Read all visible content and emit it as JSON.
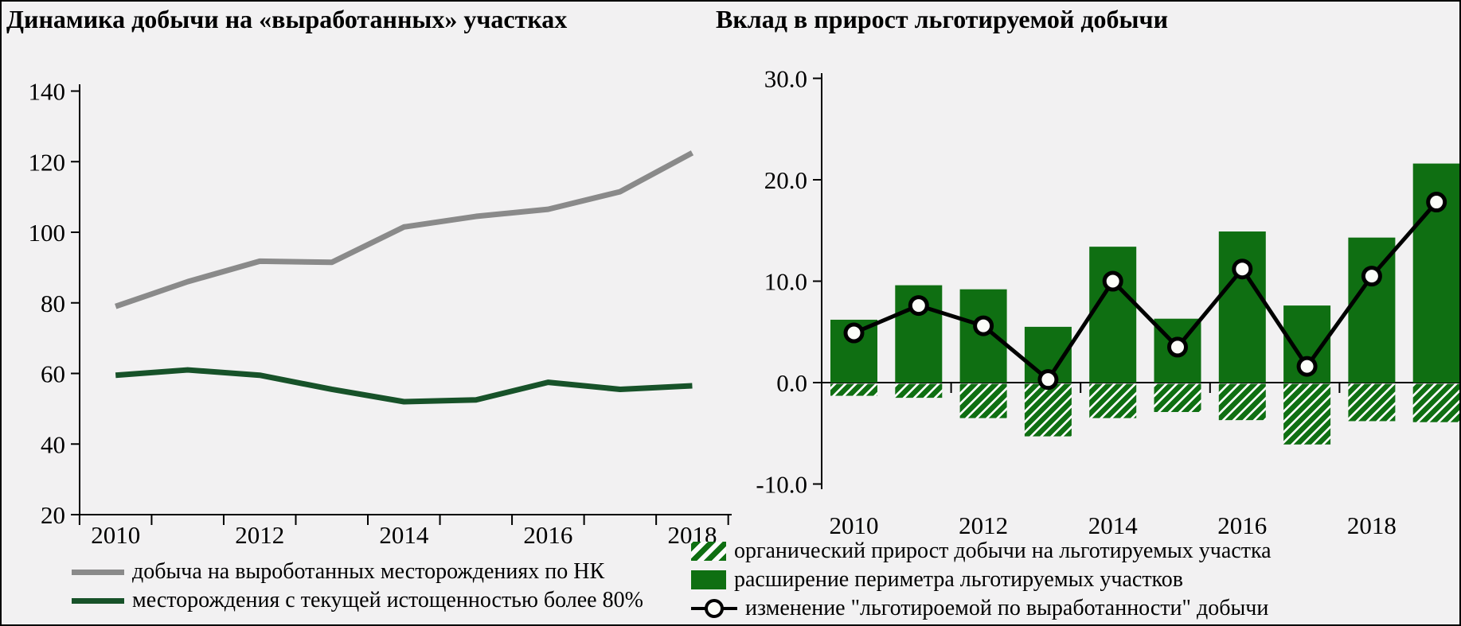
{
  "page": {
    "background": "#f2f1f2",
    "frame_color": "#000000"
  },
  "colors": {
    "gray_line": "#8a8a8a",
    "dark_green_line": "#175229",
    "bar_green": "#0f6f12",
    "hatch_bg": "#fdfdfd",
    "marker_fill": "#fbfdf8",
    "axis": "#000000",
    "text": "#000000"
  },
  "chart_data": [
    {
      "type": "line",
      "title": "Динамика добычи на «выработанных» участках",
      "x": [
        2010,
        2011,
        2012,
        2013,
        2014,
        2015,
        2016,
        2017,
        2018
      ],
      "x_tick_labels": [
        "2010",
        "2012",
        "2014",
        "2016",
        "2018"
      ],
      "y_tick_labels": [
        "140",
        "120",
        "100",
        "80",
        "60",
        "40",
        "20"
      ],
      "ylim": [
        20,
        140
      ],
      "grid": false,
      "legend_position": "bottom",
      "series": [
        {
          "name": "добыча на выроботанных месторождениях по НК",
          "color_key": "gray_line",
          "values": [
            79,
            86,
            91.8,
            91.5,
            101.5,
            104.5,
            106.5,
            111.5,
            122.5
          ]
        },
        {
          "name": "месторождения с текущей истощенностью более 80%",
          "color_key": "dark_green_line",
          "values": [
            59.5,
            61,
            59.5,
            55.5,
            52,
            52.5,
            57.5,
            55.5,
            56.5
          ]
        }
      ]
    },
    {
      "type": "bar",
      "title": "Вклад в прирост льготируемой добычи",
      "x": [
        2010,
        2011,
        2012,
        2013,
        2014,
        2015,
        2016,
        2017,
        2018,
        2019
      ],
      "x_tick_labels": [
        "2010",
        "2012",
        "2014",
        "2016",
        "2018"
      ],
      "y_tick_labels": [
        "30.0",
        "20.0",
        "10.0",
        "0.0",
        "-10.0"
      ],
      "ylim": [
        -10,
        30
      ],
      "grid": false,
      "legend_position": "bottom",
      "series": [
        {
          "name": "органический прирост добычи на льготируемых участка",
          "style": "hatched-bar",
          "values": [
            -1.3,
            -1.5,
            -3.5,
            -5.3,
            -3.5,
            -2.9,
            -3.7,
            -6.1,
            -3.8,
            -3.9
          ]
        },
        {
          "name": "расширение периметра льготируемых участков",
          "style": "solid-bar",
          "values": [
            6.2,
            9.6,
            9.2,
            5.5,
            13.4,
            6.3,
            14.9,
            7.6,
            14.3,
            21.6
          ]
        },
        {
          "name": "изменение \"льготироемой по выработанности\" добычи",
          "style": "line-marker",
          "values": [
            4.9,
            7.6,
            5.6,
            0.3,
            10.0,
            3.5,
            11.2,
            1.6,
            10.5,
            17.8
          ]
        }
      ]
    }
  ]
}
